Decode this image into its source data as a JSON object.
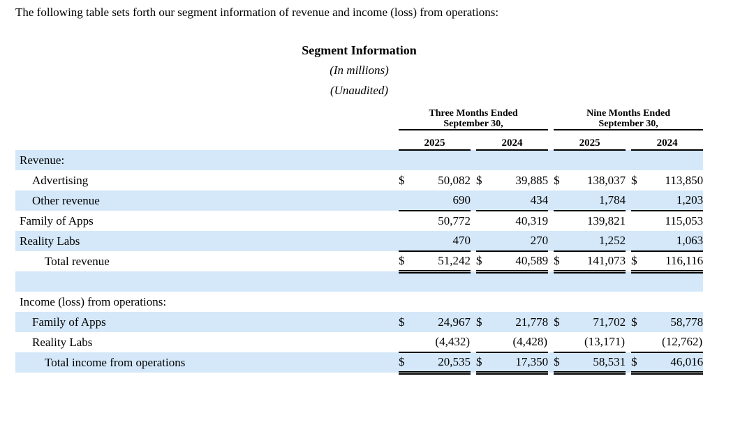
{
  "colors": {
    "row_shade": "#d4e8f9",
    "rule_color": "#000000"
  },
  "page": {
    "intro": "The following table sets forth our segment information of revenue and income (loss) from operations:",
    "title": "Segment Information",
    "subtitle_units": "(In millions)",
    "subtitle_audit": "(Unaudited)"
  },
  "table": {
    "header": {
      "groups": [
        {
          "line1": "Three Months Ended",
          "line2": "September 30,"
        },
        {
          "line1": "Nine Months Ended",
          "line2": "September 30,"
        }
      ],
      "years": [
        "2025",
        "2024",
        "2025",
        "2024"
      ]
    },
    "rows": [
      {
        "label": "Revenue:",
        "indent": 0,
        "shade": true,
        "rule": "none",
        "cells": [
          {
            "usd": "",
            "val": ""
          },
          {
            "usd": "",
            "val": ""
          },
          {
            "usd": "",
            "val": ""
          },
          {
            "usd": "",
            "val": ""
          }
        ]
      },
      {
        "label": "Advertising",
        "indent": 1,
        "shade": false,
        "rule": "none",
        "cells": [
          {
            "usd": "$",
            "val": "50,082"
          },
          {
            "usd": "$",
            "val": "39,885"
          },
          {
            "usd": "$",
            "val": "138,037"
          },
          {
            "usd": "$",
            "val": "113,850"
          }
        ]
      },
      {
        "label": "Other revenue",
        "indent": 1,
        "shade": true,
        "rule": "single",
        "cells": [
          {
            "usd": "",
            "val": "690"
          },
          {
            "usd": "",
            "val": "434"
          },
          {
            "usd": "",
            "val": "1,784"
          },
          {
            "usd": "",
            "val": "1,203"
          }
        ]
      },
      {
        "label": "Family of Apps",
        "indent": 0,
        "shade": false,
        "rule": "none",
        "cells": [
          {
            "usd": "",
            "val": "50,772"
          },
          {
            "usd": "",
            "val": "40,319"
          },
          {
            "usd": "",
            "val": "139,821"
          },
          {
            "usd": "",
            "val": "115,053"
          }
        ]
      },
      {
        "label": "Reality Labs",
        "indent": 0,
        "shade": true,
        "rule": "single",
        "cells": [
          {
            "usd": "",
            "val": "470"
          },
          {
            "usd": "",
            "val": "270"
          },
          {
            "usd": "",
            "val": "1,252"
          },
          {
            "usd": "",
            "val": "1,063"
          }
        ]
      },
      {
        "label": "Total revenue",
        "indent": 2,
        "shade": false,
        "rule": "double",
        "cells": [
          {
            "usd": "$",
            "val": "51,242"
          },
          {
            "usd": "$",
            "val": "40,589"
          },
          {
            "usd": "$",
            "val": "141,073"
          },
          {
            "usd": "$",
            "val": "116,116"
          }
        ]
      },
      {
        "label": "",
        "indent": 0,
        "shade": true,
        "rule": "none",
        "cells": [
          {
            "usd": "",
            "val": ""
          },
          {
            "usd": "",
            "val": ""
          },
          {
            "usd": "",
            "val": ""
          },
          {
            "usd": "",
            "val": ""
          }
        ]
      },
      {
        "label": "Income (loss) from operations:",
        "indent": 0,
        "shade": false,
        "rule": "none",
        "cells": [
          {
            "usd": "",
            "val": ""
          },
          {
            "usd": "",
            "val": ""
          },
          {
            "usd": "",
            "val": ""
          },
          {
            "usd": "",
            "val": ""
          }
        ]
      },
      {
        "label": "Family of Apps",
        "indent": 1,
        "shade": true,
        "rule": "none",
        "cells": [
          {
            "usd": "$",
            "val": "24,967"
          },
          {
            "usd": "$",
            "val": "21,778"
          },
          {
            "usd": "$",
            "val": "71,702"
          },
          {
            "usd": "$",
            "val": "58,778"
          }
        ]
      },
      {
        "label": "Reality Labs",
        "indent": 1,
        "shade": false,
        "rule": "single",
        "cells": [
          {
            "usd": "",
            "val": "(4,432)"
          },
          {
            "usd": "",
            "val": "(4,428)"
          },
          {
            "usd": "",
            "val": "(13,171)"
          },
          {
            "usd": "",
            "val": "(12,762)"
          }
        ]
      },
      {
        "label": "Total income from operations",
        "indent": 2,
        "shade": true,
        "rule": "double",
        "cells": [
          {
            "usd": "$",
            "val": "20,535"
          },
          {
            "usd": "$",
            "val": "17,350"
          },
          {
            "usd": "$",
            "val": "58,531"
          },
          {
            "usd": "$",
            "val": "46,016"
          }
        ]
      }
    ]
  }
}
